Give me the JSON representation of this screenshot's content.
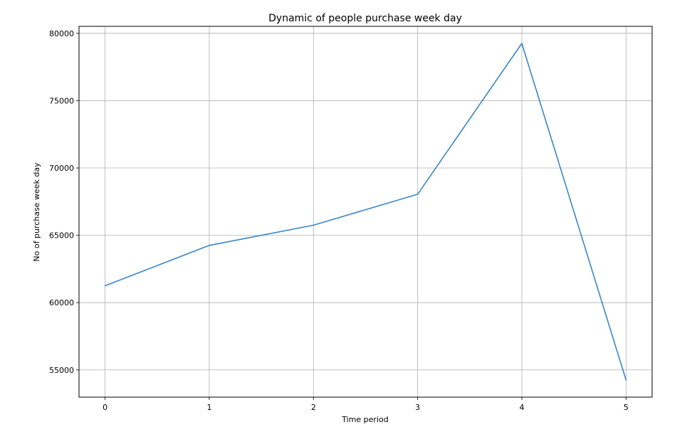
{
  "chart_data": {
    "type": "line",
    "title": "Dynamic of people purchase week day",
    "xlabel": "Time period",
    "ylabel": "No of purchase week day",
    "x": [
      0,
      1,
      2,
      3,
      4,
      5
    ],
    "series": [
      {
        "values": [
          61250,
          64250,
          65750,
          68050,
          79250,
          54250
        ]
      }
    ],
    "xticks": [
      0,
      1,
      2,
      3,
      4,
      5
    ],
    "yticks": [
      55000,
      60000,
      65000,
      70000,
      75000,
      80000
    ],
    "xlim": [
      -0.25,
      5.25
    ],
    "ylim": [
      52980,
      80520
    ],
    "grid": true,
    "colors": {
      "line": "#3b86c6",
      "grid": "#b0b0b0",
      "axes": "#000000"
    }
  }
}
